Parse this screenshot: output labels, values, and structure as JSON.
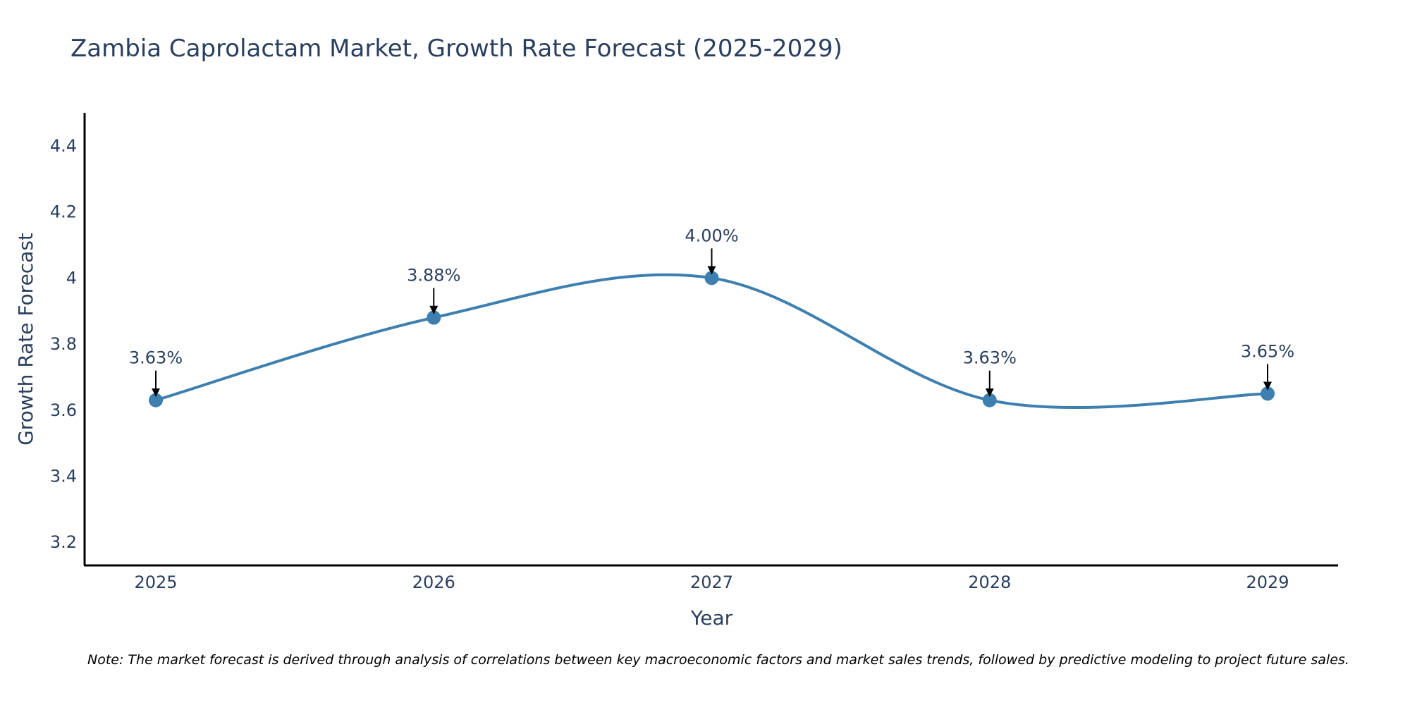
{
  "chart_data": {
    "type": "line",
    "title": "Zambia Caprolactam Market, Growth Rate Forecast (2025-2029)",
    "xlabel": "Year",
    "ylabel": "Growth Rate Forecast",
    "categories": [
      "2025",
      "2026",
      "2027",
      "2028",
      "2029"
    ],
    "series": [
      {
        "name": "Growth Rate Forecast",
        "values": [
          3.63,
          3.88,
          4.0,
          3.63,
          3.65
        ],
        "labels": [
          "3.63%",
          "3.88%",
          "4.00%",
          "3.63%",
          "3.65%"
        ]
      }
    ],
    "ylim": [
      3.13,
      4.5
    ],
    "yticks": [
      3.2,
      3.4,
      3.6,
      3.8,
      4.0,
      4.2,
      4.4
    ],
    "ytick_labels": [
      "3.2",
      "3.4",
      "3.6",
      "3.8",
      "4",
      "4.2",
      "4.4"
    ],
    "grid": false,
    "note": "Note: The market forecast is derived through analysis of correlations between key macroeconomic factors and market sales trends, followed by predictive modeling to project future sales.",
    "colors": {
      "line": "#3d7faf",
      "marker": "#3d7faf",
      "axis": "#000000",
      "text": "#2a3f5f",
      "arrow": "#000000"
    }
  }
}
